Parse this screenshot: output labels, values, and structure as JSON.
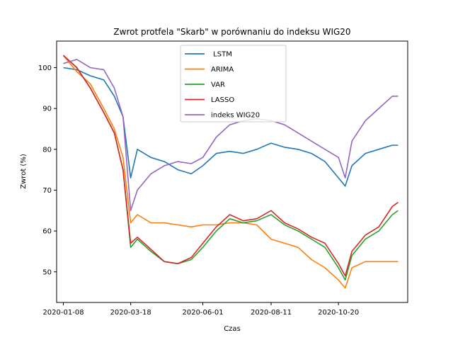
{
  "chart_data": {
    "type": "line",
    "title": "Zwrot protfela \"Skarb\" w porównaniu do indeksu WIG20",
    "xlabel": "Czas",
    "ylabel": "Zwrot (%)",
    "xlim": [
      "2020-01-01",
      "2020-12-31"
    ],
    "ylim": [
      42.5,
      106.5
    ],
    "x_ticks": [
      "2020-01-08",
      "2020-03-18",
      "2020-06-01",
      "2020-08-11",
      "2020-10-20"
    ],
    "y_ticks": [
      50,
      60,
      70,
      80,
      90,
      100
    ],
    "grid": false,
    "legend_position": "top-center",
    "x": [
      "2020-01-08",
      "2020-01-22",
      "2020-02-05",
      "2020-02-19",
      "2020-03-01",
      "2020-03-10",
      "2020-03-18",
      "2020-03-25",
      "2020-04-08",
      "2020-04-22",
      "2020-05-06",
      "2020-05-20",
      "2020-06-01",
      "2020-06-15",
      "2020-06-29",
      "2020-07-13",
      "2020-07-27",
      "2020-08-11",
      "2020-08-25",
      "2020-09-08",
      "2020-09-22",
      "2020-10-06",
      "2020-10-20",
      "2020-10-27",
      "2020-11-03",
      "2020-11-17",
      "2020-12-01",
      "2020-12-15",
      "2020-12-21"
    ],
    "series": [
      {
        "name": " LSTM",
        "color": "#1f77b4",
        "values": [
          100,
          99.5,
          98,
          97,
          93,
          88,
          73,
          80,
          78,
          77,
          75,
          74,
          76,
          79,
          79.5,
          79,
          80,
          81.5,
          80.5,
          80,
          79,
          77,
          73,
          71,
          76,
          79,
          80,
          81,
          81
        ]
      },
      {
        "name": "ARIMA",
        "color": "#ff7f0e",
        "values": [
          103,
          99,
          96,
          90,
          85,
          78,
          62,
          64,
          62,
          62,
          61.5,
          61,
          61.5,
          61.5,
          62,
          62,
          61.5,
          58,
          57,
          56,
          53,
          51,
          48,
          46,
          51,
          52.5,
          52.5,
          52.5,
          52.5
        ]
      },
      {
        "name": "VAR",
        "color": "#2ca02c",
        "values": [
          103,
          100,
          95,
          89,
          84,
          75,
          56,
          58,
          55,
          52.5,
          52,
          53,
          56,
          60,
          63,
          62,
          62.5,
          64,
          61.5,
          60,
          58,
          56,
          51,
          48,
          54,
          58,
          60,
          64,
          65
        ]
      },
      {
        "name": "LASSO",
        "color": "#d62728",
        "values": [
          103,
          100,
          95,
          89,
          84,
          75,
          57,
          58.5,
          55.5,
          52.5,
          52,
          53.5,
          57,
          61,
          64,
          62.5,
          63,
          65,
          62,
          60.5,
          58.5,
          57,
          52,
          49,
          55,
          59,
          61,
          66,
          67
        ]
      },
      {
        "name": "indeks WIG20",
        "color": "#9467bd",
        "values": [
          101,
          102,
          100,
          99.5,
          95,
          88,
          65,
          70,
          74,
          76,
          77,
          76.5,
          78,
          83,
          86,
          87,
          87.5,
          87,
          86,
          84,
          82,
          80,
          78,
          73,
          82,
          87,
          90,
          93,
          93
        ]
      }
    ]
  }
}
